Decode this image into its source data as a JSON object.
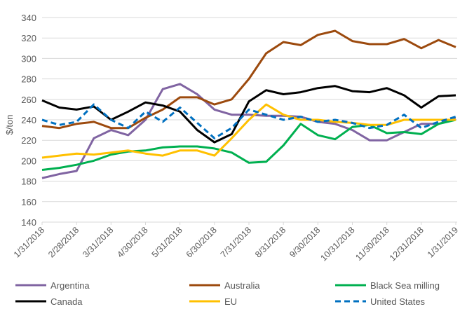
{
  "chart_data": {
    "type": "line",
    "title": "",
    "xlabel": "",
    "ylabel": "$/ton",
    "ylim": [
      140,
      340
    ],
    "yticks": [
      140,
      160,
      180,
      200,
      220,
      240,
      260,
      280,
      300,
      320,
      340
    ],
    "grid": true,
    "legend_position": "bottom",
    "x_tick_labels": [
      "1/31/2018",
      "2/28/2018",
      "3/31/2018",
      "4/30/2018",
      "5/31/2018",
      "6/30/2018",
      "7/31/2018",
      "8/31/2018",
      "9/30/2018",
      "10/31/2018",
      "11/30/2018",
      "12/31/2018",
      "1/31/2019"
    ],
    "x_months": [
      0,
      0.5,
      1,
      1.5,
      2,
      2.5,
      3,
      3.5,
      4,
      4.5,
      5,
      5.5,
      6,
      6.5,
      7,
      7.5,
      8,
      8.5,
      9,
      9.5,
      10,
      10.5,
      11,
      11.5,
      12
    ],
    "series": [
      {
        "name": "Argentina",
        "color": "#8064a2",
        "dash": false,
        "values": [
          183,
          187,
          190,
          222,
          230,
          225,
          240,
          270,
          275,
          265,
          250,
          245,
          245,
          244,
          244,
          243,
          238,
          236,
          230,
          220,
          220,
          228,
          236,
          236,
          241
        ]
      },
      {
        "name": "Australia",
        "color": "#9c4a0e",
        "dash": false,
        "values": [
          234,
          232,
          236,
          238,
          232,
          232,
          242,
          250,
          262,
          262,
          255,
          260,
          280,
          305,
          316,
          313,
          323,
          327,
          317,
          314,
          314,
          319,
          310,
          318,
          311
        ]
      },
      {
        "name": "Black Sea milling",
        "color": "#00b050",
        "dash": false,
        "values": [
          191,
          193,
          196,
          200,
          206,
          209,
          210,
          213,
          214,
          214,
          212,
          208,
          198,
          199,
          215,
          236,
          225,
          221,
          233,
          235,
          227,
          228,
          226,
          236,
          240
        ]
      },
      {
        "name": "Canada",
        "color": "#000000",
        "dash": false,
        "values": [
          259,
          252,
          250,
          253,
          240,
          248,
          257,
          254,
          248,
          230,
          218,
          226,
          258,
          269,
          265,
          267,
          271,
          273,
          268,
          267,
          271,
          264,
          252,
          263,
          264
        ]
      },
      {
        "name": "EU",
        "color": "#ffc000",
        "dash": false,
        "values": [
          203,
          205,
          207,
          206,
          208,
          210,
          207,
          205,
          210,
          210,
          205,
          222,
          240,
          255,
          245,
          240,
          240,
          238,
          237,
          235,
          235,
          240,
          240,
          240,
          240
        ]
      },
      {
        "name": "United States",
        "color": "#0070c0",
        "dash": true,
        "values": [
          240,
          235,
          238,
          255,
          240,
          232,
          248,
          238,
          252,
          237,
          222,
          232,
          250,
          245,
          240,
          243,
          238,
          240,
          237,
          232,
          235,
          245,
          232,
          238,
          243
        ]
      }
    ]
  }
}
